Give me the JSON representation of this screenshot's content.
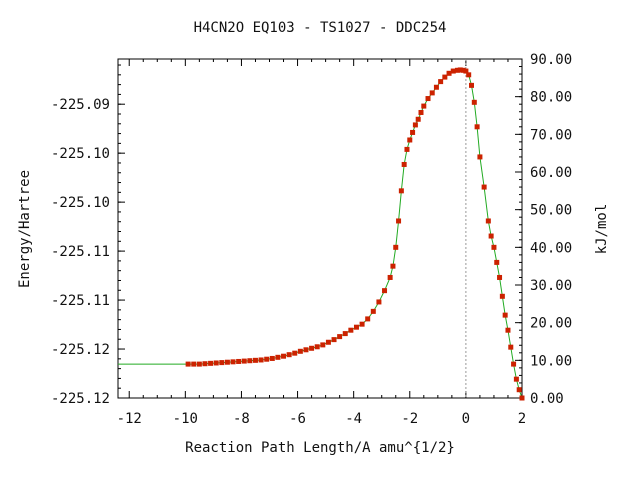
{
  "chart_data": {
    "type": "line",
    "title": "H4CN2O    EQ103 - TS1027 - DDC254",
    "xlabel": "Reaction Path Length/A amu^{1/2}",
    "ylabel": "Energy/Hartree",
    "y2label": "kJ/mol",
    "xlim": [
      -12.4,
      2.0
    ],
    "ylim_kjmol": [
      0.0,
      90.0
    ],
    "x_ticks": [
      -12,
      -10,
      -8,
      -6,
      -4,
      -2,
      0,
      2
    ],
    "x_tick_labels": [
      "-12",
      "-10",
      "-8",
      "-6",
      "-4",
      "-2",
      "0",
      "2"
    ],
    "y_left_ticks_kjmol": [
      0,
      13,
      26,
      39,
      52,
      65,
      78
    ],
    "y_left_tick_labels": [
      "-225.12",
      "-225.12",
      "-225.11",
      "-225.11",
      "-225.10",
      "-225.10",
      "-225.09"
    ],
    "y_right_ticks": [
      0,
      10,
      20,
      30,
      40,
      50,
      60,
      70,
      80,
      90
    ],
    "y_right_tick_labels": [
      "0.00",
      "10.00",
      "20.00",
      "30.00",
      "40.00",
      "50.00",
      "60.00",
      "70.00",
      "80.00",
      "90.00"
    ],
    "ts_marker_x": 0.0,
    "colors": {
      "line": "#22aa22",
      "marker": "#cc2200",
      "ts_line": "#999999"
    },
    "series": [
      {
        "x": [
          -12.4,
          -9.9,
          -9.7,
          -9.5,
          -9.3,
          -9.1,
          -8.9,
          -8.7,
          -8.5,
          -8.3,
          -8.1,
          -7.9,
          -7.7,
          -7.5,
          -7.3,
          -7.1,
          -6.9,
          -6.7,
          -6.5,
          -6.3,
          -6.1,
          -5.9,
          -5.7,
          -5.5,
          -5.3,
          -5.1,
          -4.9,
          -4.7,
          -4.5,
          -4.3,
          -4.1,
          -3.9,
          -3.7,
          -3.5,
          -3.3,
          -3.1,
          -2.9,
          -2.7,
          -2.6,
          -2.5,
          -2.4,
          -2.3,
          -2.2,
          -2.1,
          -2.0,
          -1.9,
          -1.8,
          -1.7,
          -1.6,
          -1.5,
          -1.35,
          -1.2,
          -1.05,
          -0.9,
          -0.75,
          -0.6,
          -0.45,
          -0.3,
          -0.2,
          -0.1,
          0.0,
          0.1,
          0.2,
          0.3,
          0.4,
          0.5,
          0.65,
          0.8,
          0.9,
          1.0,
          1.1,
          1.2,
          1.3,
          1.4,
          1.5,
          1.6,
          1.7,
          1.8,
          1.9,
          2.0
        ],
        "y": [
          9.0,
          9.0,
          9.0,
          9.0,
          9.1,
          9.2,
          9.3,
          9.4,
          9.5,
          9.6,
          9.7,
          9.8,
          9.9,
          10.0,
          10.1,
          10.3,
          10.5,
          10.8,
          11.1,
          11.5,
          11.9,
          12.4,
          12.8,
          13.2,
          13.6,
          14.1,
          14.8,
          15.5,
          16.3,
          17.1,
          18.0,
          18.8,
          19.6,
          21.0,
          23.0,
          25.5,
          28.5,
          32.0,
          35.0,
          40.0,
          47.0,
          55.0,
          62.0,
          66.0,
          68.5,
          70.5,
          72.5,
          74.0,
          75.8,
          77.5,
          79.5,
          81.0,
          82.5,
          84.0,
          85.2,
          86.2,
          86.8,
          87.0,
          87.1,
          87.0,
          86.8,
          85.8,
          83.0,
          78.5,
          72.0,
          64.0,
          56.0,
          47.0,
          43.0,
          40.0,
          36.0,
          32.0,
          27.0,
          22.0,
          18.0,
          13.5,
          9.0,
          5.0,
          2.2,
          0.0
        ]
      }
    ]
  }
}
